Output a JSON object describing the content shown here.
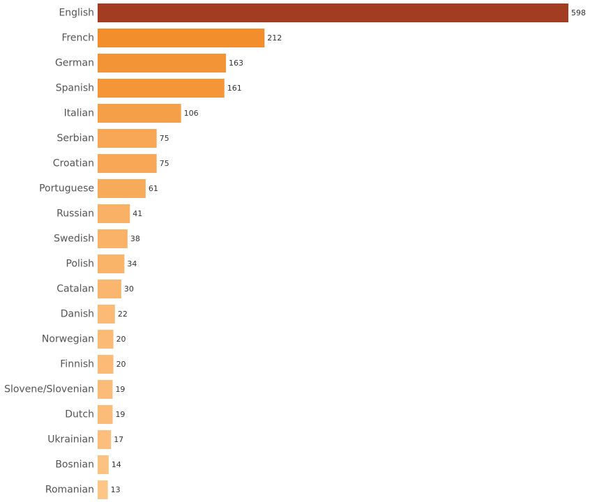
{
  "chart_data": {
    "type": "bar",
    "orientation": "horizontal",
    "title": "",
    "xlabel": "",
    "ylabel": "",
    "categories": [
      "English",
      "French",
      "German",
      "Spanish",
      "Italian",
      "Serbian",
      "Croatian",
      "Portuguese",
      "Russian",
      "Swedish",
      "Polish",
      "Catalan",
      "Danish",
      "Norwegian",
      "Finnish",
      "Slovene/Slovenian",
      "Dutch",
      "Ukrainian",
      "Bosnian",
      "Romanian"
    ],
    "values": [
      598,
      212,
      163,
      161,
      106,
      75,
      75,
      61,
      41,
      38,
      34,
      30,
      22,
      20,
      20,
      19,
      19,
      17,
      14,
      13
    ],
    "xlim": [
      0,
      598
    ],
    "grid": false,
    "legend": "none",
    "color_scale": {
      "low": "#fdc689",
      "mid": "#f7a13e",
      "high": "#f28e2b",
      "max": "#a23d22"
    }
  }
}
